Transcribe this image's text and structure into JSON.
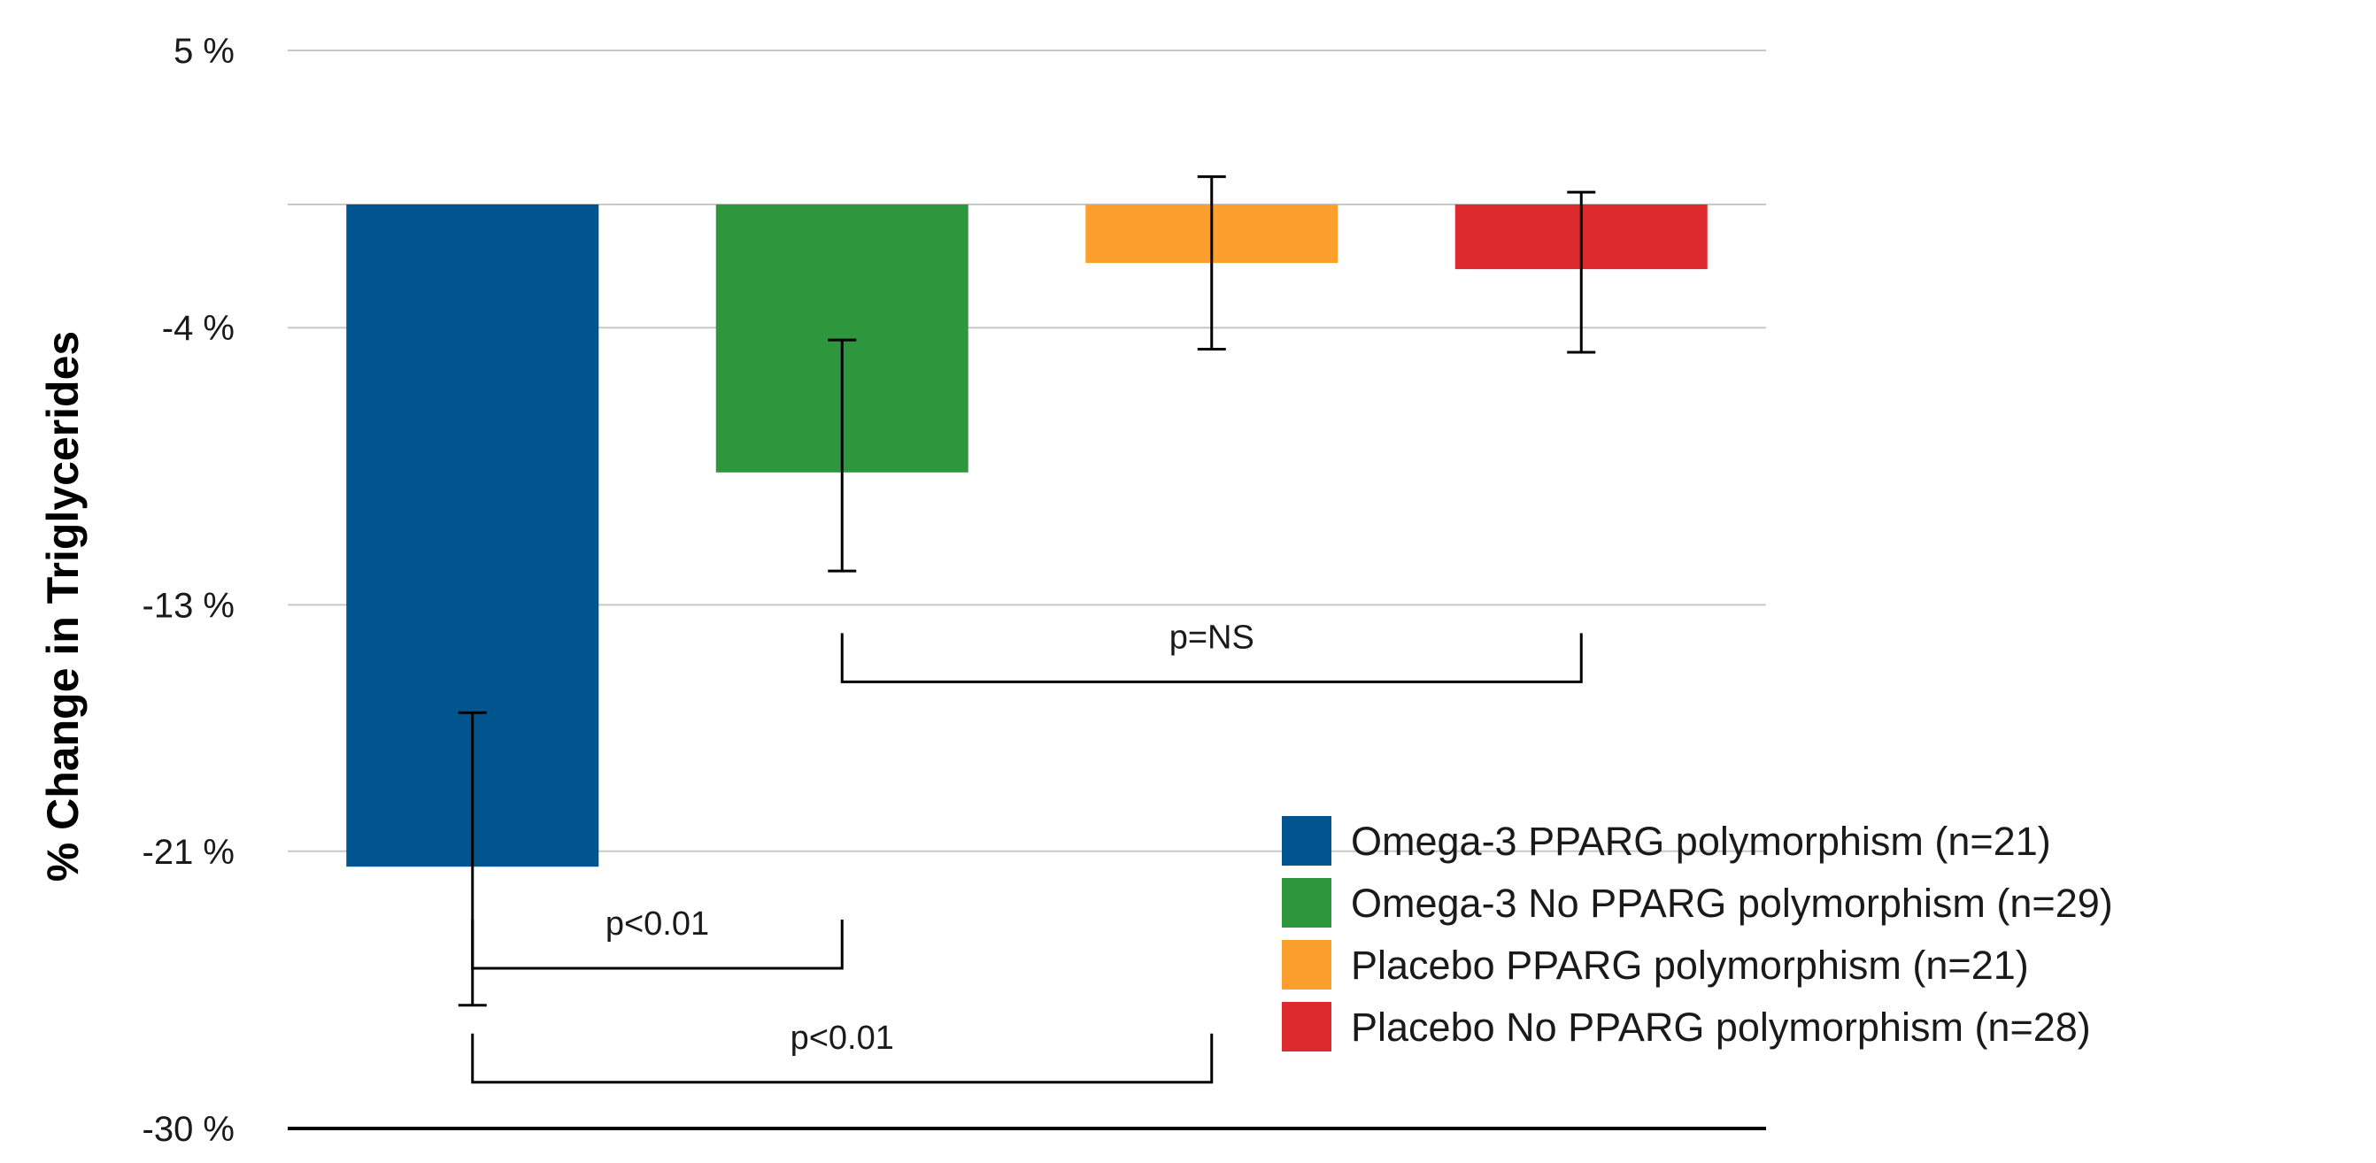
{
  "chart_data": {
    "type": "bar",
    "title": "",
    "xlabel": "",
    "ylabel": "% Change in Triglycerides",
    "ylim": [
      -30,
      5
    ],
    "yticks": [
      5,
      -4,
      -13,
      -21,
      -30
    ],
    "ytick_labels": [
      "5 %",
      "-4 %",
      "-13 %",
      "-21 %",
      "-30 %"
    ],
    "grid": true,
    "categories": [
      "Omega-3 PPARG polymorphism (n=21)",
      "Omega-3 No PPARG polymorphism (n=29)",
      "Placebo PPARG polymorphism (n=21)",
      "Placebo No PPARG polymorphism (n=28)"
    ],
    "values": [
      -21.5,
      -8.7,
      -1.9,
      -2.1
    ],
    "error_low": [
      -26.0,
      -11.9,
      -4.7,
      -4.8
    ],
    "error_high": [
      -16.5,
      -4.4,
      0.9,
      0.4
    ],
    "colors": [
      "#00558F",
      "#2E963D",
      "#FBA02F",
      "#DD2A2E"
    ],
    "legend_position": "bottom-right",
    "legend": [
      "Omega-3 PPARG polymorphism (n=21)",
      "Omega-3 No PPARG polymorphism (n=29)",
      "Placebo PPARG polymorphism (n=21)",
      "Placebo No PPARG polymorphism (n=28)"
    ],
    "annotations": [
      {
        "text": "p=NS",
        "from_bar": 1,
        "to_bar": 3,
        "level": -15.5,
        "direction": "down"
      },
      {
        "text": "p<0.01",
        "from_bar": 0,
        "to_bar": 1,
        "level": -24.8,
        "direction": "up"
      },
      {
        "text": "p<0.01",
        "from_bar": 0,
        "to_bar": 2,
        "level": -28.5,
        "direction": "up"
      }
    ]
  }
}
